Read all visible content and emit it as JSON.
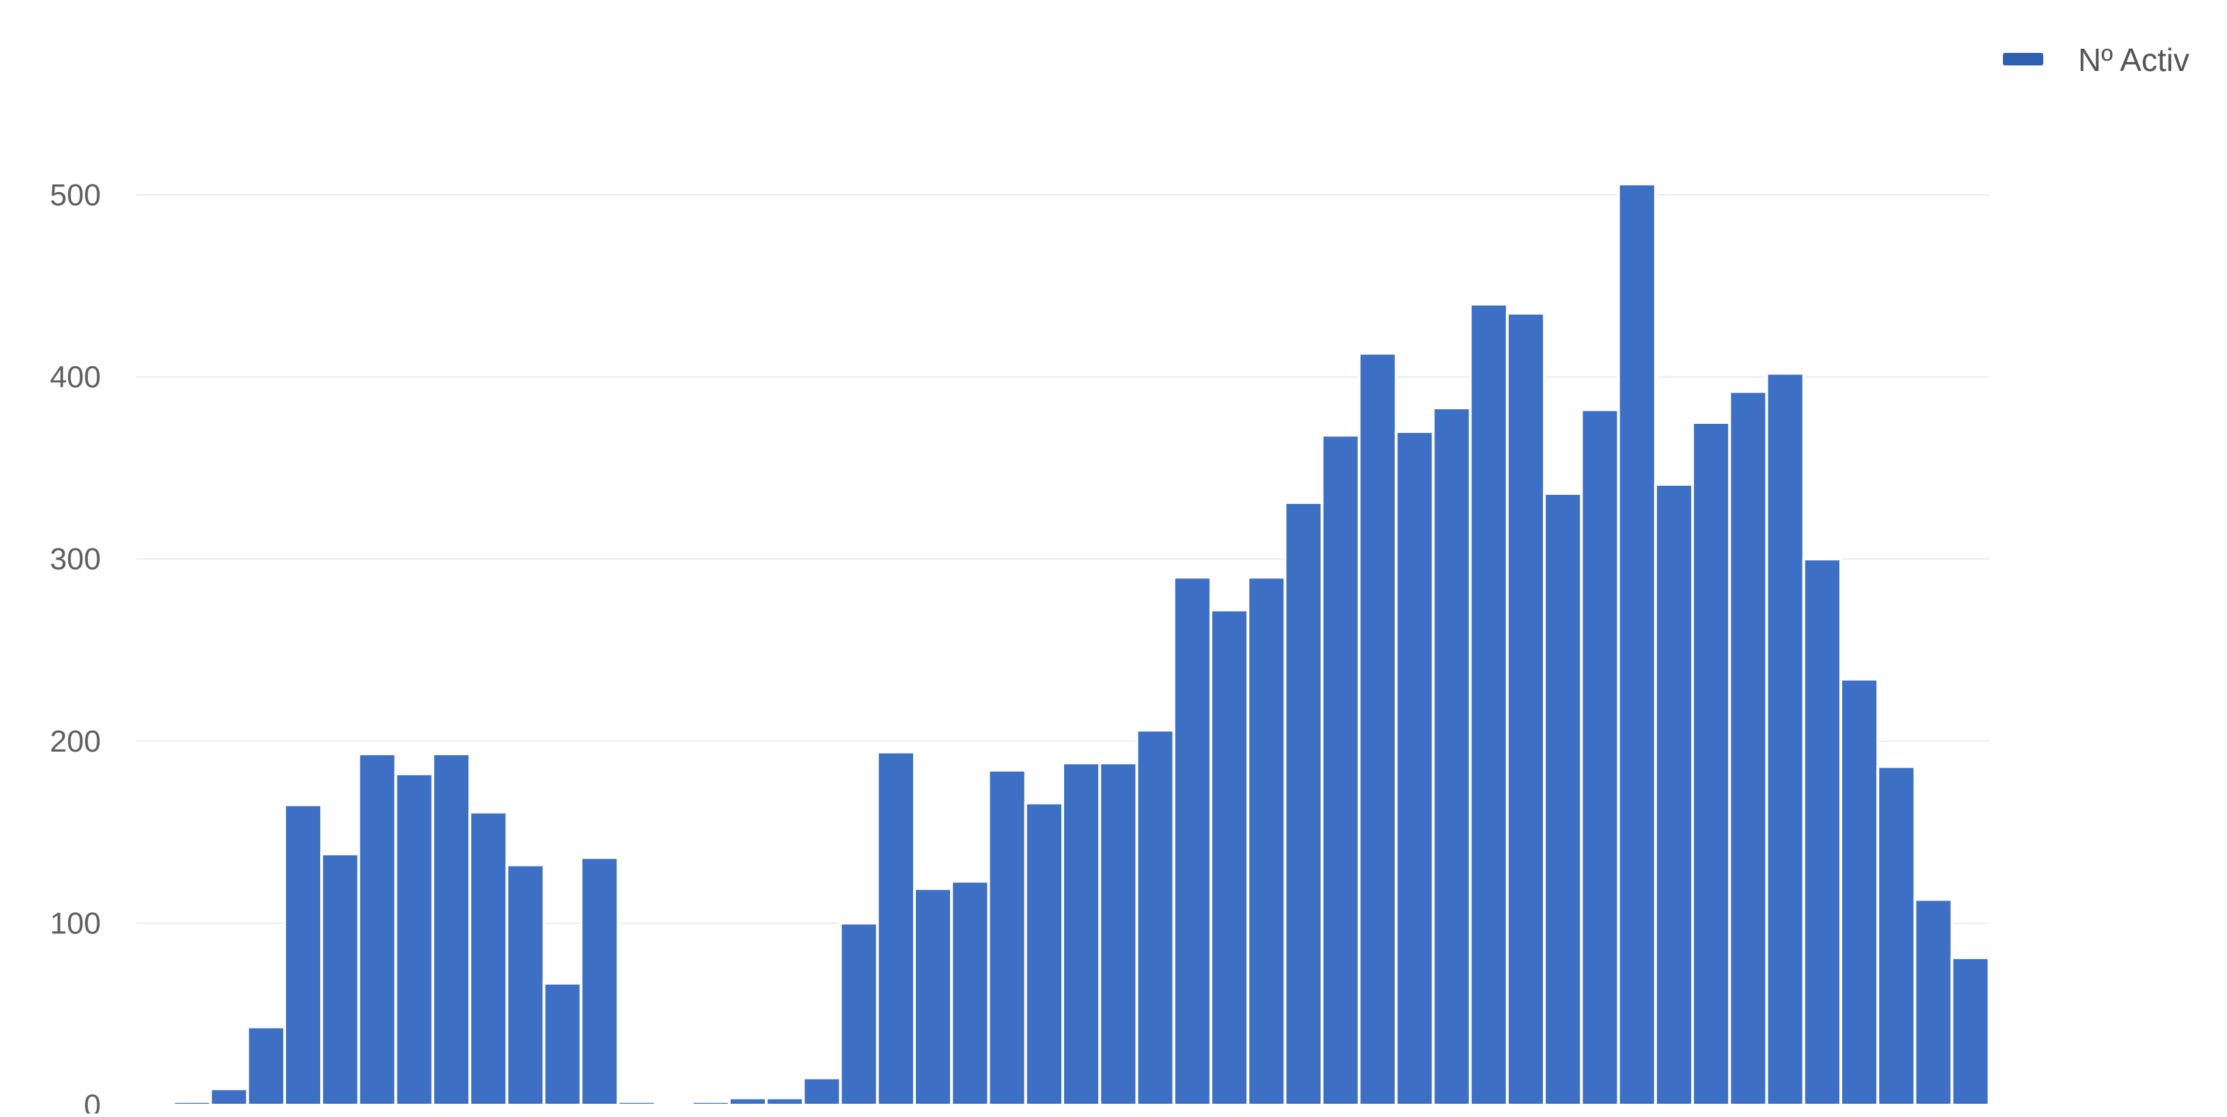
{
  "chart_data": {
    "type": "bar",
    "legend": {
      "label": "Nº Activ",
      "position": "top-right"
    },
    "color": "#3d6fc4",
    "grid": true,
    "ylim": [
      0,
      500
    ],
    "yticks": [
      "0",
      "100",
      "200",
      "300",
      "400",
      "500"
    ],
    "series": [
      {
        "name": "Nº Activ",
        "values": [
          1,
          2,
          9,
          43,
          165,
          138,
          193,
          182,
          193,
          161,
          132,
          67,
          136,
          2,
          1,
          2,
          4,
          4,
          15,
          100,
          194,
          119,
          123,
          184,
          166,
          188,
          188,
          206,
          290,
          272,
          290,
          331,
          368,
          413,
          370,
          383,
          440,
          435,
          336,
          382,
          506,
          341,
          375,
          392,
          402,
          300,
          234,
          186,
          113,
          81
        ]
      }
    ]
  }
}
